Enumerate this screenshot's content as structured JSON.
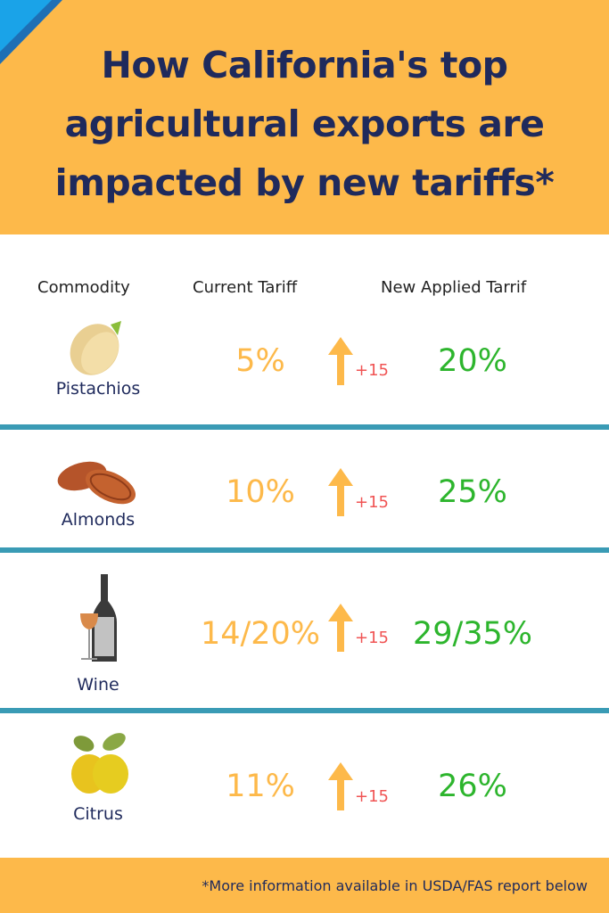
{
  "title": "How California's top agricultural exports are impacted by new tariffs*",
  "title_lines": [
    "How California's top",
    "agricultural exports are",
    "impacted by new tariffs*"
  ],
  "columns": {
    "commodity": "Commodity",
    "current": "Current Tariff",
    "new": "New Applied Tarrif"
  },
  "rows": [
    {
      "commodity": "Pistachios",
      "icon": "pistachio-icon",
      "current": "5%",
      "increase": "+15",
      "new": "20%"
    },
    {
      "commodity": "Almonds",
      "icon": "almond-icon",
      "current": "10%",
      "increase": "+15",
      "new": "25%"
    },
    {
      "commodity": "Wine",
      "icon": "wine-icon",
      "current": "14/20%",
      "increase": "+15",
      "new": "29/35%"
    },
    {
      "commodity": "Citrus",
      "icon": "lemon-icon",
      "current": "11%",
      "increase": "+15",
      "new": "26%"
    }
  ],
  "footnote": "*More information available in USDA/FAS report below",
  "colors": {
    "header": "#FDB94A",
    "title": "#1F2A5C",
    "current": "#FDB94A",
    "new": "#2DB52D",
    "increase": "#F05454",
    "divider": "#3A9BB5"
  }
}
